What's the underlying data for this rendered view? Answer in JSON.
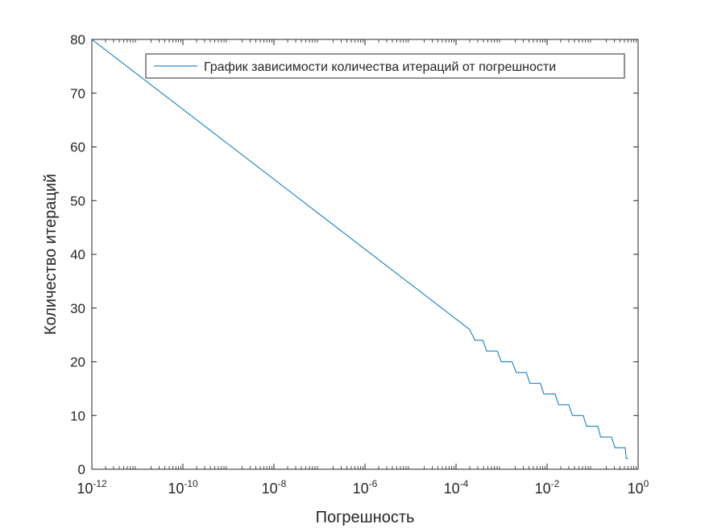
{
  "chart_data": {
    "type": "line",
    "title": "",
    "xlabel": "Погрешность",
    "ylabel": "Количество итераций",
    "x_scale": "log",
    "xlim": [
      1e-12,
      1
    ],
    "ylim": [
      0,
      80
    ],
    "x_ticks": [
      {
        "value": 1e-12,
        "base": "10",
        "exp": "-12"
      },
      {
        "value": 1e-10,
        "base": "10",
        "exp": "-10"
      },
      {
        "value": 1e-08,
        "base": "10",
        "exp": "-8"
      },
      {
        "value": 1e-06,
        "base": "10",
        "exp": "-6"
      },
      {
        "value": 0.0001,
        "base": "10",
        "exp": "-4"
      },
      {
        "value": 0.01,
        "base": "10",
        "exp": "-2"
      },
      {
        "value": 1,
        "base": "10",
        "exp": "0"
      }
    ],
    "y_ticks": [
      0,
      10,
      20,
      30,
      40,
      50,
      60,
      70,
      80
    ],
    "grid": false,
    "legend_position": "top-right",
    "series": [
      {
        "name": "График зависимости количества итераций от погрешности",
        "color": "#0072BD",
        "points": [
          [
            1e-12,
            80
          ],
          [
            0.0002,
            26
          ],
          [
            0.00026,
            24
          ],
          [
            0.00039,
            24
          ],
          [
            0.00047,
            22
          ],
          [
            0.00081,
            22
          ],
          [
            0.00098,
            20
          ],
          [
            0.0017,
            20
          ],
          [
            0.0021,
            18
          ],
          [
            0.0035,
            18
          ],
          [
            0.0042,
            16
          ],
          [
            0.0071,
            16
          ],
          [
            0.0085,
            14
          ],
          [
            0.015,
            14
          ],
          [
            0.018,
            12
          ],
          [
            0.03,
            12
          ],
          [
            0.036,
            10
          ],
          [
            0.062,
            10
          ],
          [
            0.074,
            8
          ],
          [
            0.13,
            8
          ],
          [
            0.15,
            6
          ],
          [
            0.26,
            6
          ],
          [
            0.31,
            4
          ],
          [
            0.52,
            4
          ],
          [
            0.55,
            2
          ],
          [
            0.6,
            2
          ]
        ]
      }
    ]
  }
}
